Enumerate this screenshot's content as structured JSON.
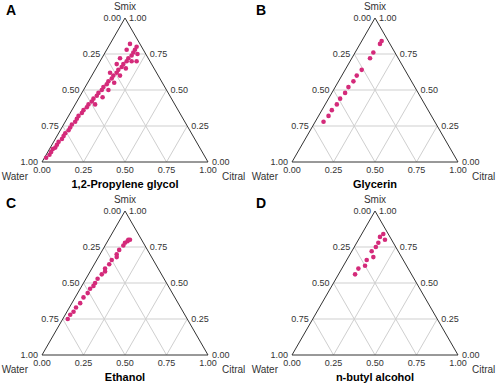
{
  "chart_data": [
    {
      "type": "ternary",
      "panel_label": "A",
      "title": "1,2-Propylene glycol",
      "components": [
        "Smix",
        "Water",
        "Citral"
      ],
      "lim": [
        0,
        1
      ],
      "ticks": [
        {
          "value": 0,
          "label": "0.00"
        },
        {
          "value": 0.25,
          "label": "0.25"
        },
        {
          "value": 0.5,
          "label": "0.50"
        },
        {
          "value": 0.75,
          "label": "0.75"
        },
        {
          "value": 1,
          "label": "1.00"
        }
      ],
      "grid": true,
      "color": "#d42a7a",
      "marker": "circle",
      "points": [
        [
          0.03,
          0.96,
          0.01
        ],
        [
          0.05,
          0.93,
          0.02
        ],
        [
          0.07,
          0.91,
          0.02
        ],
        [
          0.09,
          0.89,
          0.02
        ],
        [
          0.1,
          0.87,
          0.03
        ],
        [
          0.12,
          0.85,
          0.03
        ],
        [
          0.14,
          0.83,
          0.03
        ],
        [
          0.16,
          0.8,
          0.04
        ],
        [
          0.18,
          0.78,
          0.04
        ],
        [
          0.2,
          0.76,
          0.04
        ],
        [
          0.22,
          0.73,
          0.05
        ],
        [
          0.24,
          0.71,
          0.05
        ],
        [
          0.26,
          0.69,
          0.05
        ],
        [
          0.28,
          0.66,
          0.06
        ],
        [
          0.3,
          0.64,
          0.06
        ],
        [
          0.32,
          0.62,
          0.06
        ],
        [
          0.34,
          0.59,
          0.07
        ],
        [
          0.36,
          0.57,
          0.07
        ],
        [
          0.38,
          0.54,
          0.08
        ],
        [
          0.4,
          0.52,
          0.08
        ],
        [
          0.42,
          0.49,
          0.09
        ],
        [
          0.44,
          0.47,
          0.09
        ],
        [
          0.46,
          0.44,
          0.1
        ],
        [
          0.48,
          0.42,
          0.1
        ],
        [
          0.5,
          0.39,
          0.11
        ],
        [
          0.52,
          0.37,
          0.11
        ],
        [
          0.54,
          0.34,
          0.12
        ],
        [
          0.56,
          0.32,
          0.12
        ],
        [
          0.58,
          0.29,
          0.13
        ],
        [
          0.6,
          0.27,
          0.13
        ],
        [
          0.62,
          0.24,
          0.14
        ],
        [
          0.64,
          0.22,
          0.14
        ],
        [
          0.66,
          0.19,
          0.15
        ],
        [
          0.68,
          0.17,
          0.15
        ],
        [
          0.7,
          0.14,
          0.16
        ],
        [
          0.72,
          0.12,
          0.16
        ],
        [
          0.74,
          0.09,
          0.17
        ],
        [
          0.76,
          0.07,
          0.17
        ],
        [
          0.78,
          0.05,
          0.17
        ],
        [
          0.8,
          0.03,
          0.17
        ],
        [
          0.4,
          0.48,
          0.12
        ],
        [
          0.45,
          0.41,
          0.14
        ],
        [
          0.5,
          0.35,
          0.15
        ],
        [
          0.55,
          0.29,
          0.16
        ],
        [
          0.6,
          0.23,
          0.17
        ],
        [
          0.65,
          0.17,
          0.18
        ],
        [
          0.7,
          0.11,
          0.19
        ],
        [
          0.75,
          0.05,
          0.2
        ],
        [
          0.62,
          0.28,
          0.1
        ],
        [
          0.68,
          0.21,
          0.11
        ],
        [
          0.72,
          0.17,
          0.11
        ],
        [
          0.78,
          0.1,
          0.12
        ],
        [
          0.82,
          0.06,
          0.12
        ],
        [
          0.7,
          0.08,
          0.22
        ]
      ]
    },
    {
      "type": "ternary",
      "panel_label": "B",
      "title": "Glycerin",
      "components": [
        "Smix",
        "Water",
        "Citral"
      ],
      "lim": [
        0,
        1
      ],
      "ticks": [
        {
          "value": 0,
          "label": "0.00"
        },
        {
          "value": 0.25,
          "label": "0.25"
        },
        {
          "value": 0.5,
          "label": "0.50"
        },
        {
          "value": 0.75,
          "label": "0.75"
        },
        {
          "value": 1,
          "label": "1.00"
        }
      ],
      "grid": true,
      "color": "#d42a7a",
      "marker": "circle",
      "points": [
        [
          0.28,
          0.67,
          0.05
        ],
        [
          0.32,
          0.62,
          0.06
        ],
        [
          0.36,
          0.58,
          0.06
        ],
        [
          0.4,
          0.53,
          0.07
        ],
        [
          0.44,
          0.49,
          0.07
        ],
        [
          0.48,
          0.44,
          0.08
        ],
        [
          0.52,
          0.4,
          0.08
        ],
        [
          0.56,
          0.35,
          0.09
        ],
        [
          0.6,
          0.31,
          0.09
        ],
        [
          0.64,
          0.26,
          0.1
        ],
        [
          0.72,
          0.17,
          0.11
        ],
        [
          0.76,
          0.13,
          0.11
        ],
        [
          0.82,
          0.06,
          0.12
        ],
        [
          0.84,
          0.04,
          0.12
        ]
      ]
    },
    {
      "type": "ternary",
      "panel_label": "C",
      "title": "Ethanol",
      "components": [
        "Smix",
        "Water",
        "Citral"
      ],
      "lim": [
        0,
        1
      ],
      "ticks": [
        {
          "value": 0,
          "label": "0.00"
        },
        {
          "value": 0.25,
          "label": "0.25"
        },
        {
          "value": 0.5,
          "label": "0.50"
        },
        {
          "value": 0.75,
          "label": "0.75"
        },
        {
          "value": 1,
          "label": "1.00"
        }
      ],
      "grid": true,
      "color": "#d42a7a",
      "marker": "circle",
      "points": [
        [
          0.25,
          0.72,
          0.03
        ],
        [
          0.28,
          0.69,
          0.03
        ],
        [
          0.3,
          0.66,
          0.04
        ],
        [
          0.33,
          0.63,
          0.04
        ],
        [
          0.36,
          0.59,
          0.05
        ],
        [
          0.4,
          0.55,
          0.05
        ],
        [
          0.43,
          0.51,
          0.06
        ],
        [
          0.46,
          0.48,
          0.06
        ],
        [
          0.5,
          0.43,
          0.07
        ],
        [
          0.53,
          0.4,
          0.07
        ],
        [
          0.56,
          0.36,
          0.08
        ],
        [
          0.6,
          0.32,
          0.08
        ],
        [
          0.63,
          0.28,
          0.09
        ],
        [
          0.66,
          0.25,
          0.09
        ],
        [
          0.7,
          0.2,
          0.1
        ],
        [
          0.73,
          0.17,
          0.1
        ],
        [
          0.76,
          0.13,
          0.11
        ],
        [
          0.78,
          0.11,
          0.11
        ],
        [
          0.79,
          0.09,
          0.12
        ],
        [
          0.8,
          0.08,
          0.12
        ],
        [
          0.8,
          0.07,
          0.13
        ],
        [
          0.48,
          0.45,
          0.07
        ],
        [
          0.58,
          0.33,
          0.09
        ],
        [
          0.68,
          0.21,
          0.11
        ]
      ]
    },
    {
      "type": "ternary",
      "panel_label": "D",
      "title": "n-butyl alcohol",
      "components": [
        "Smix",
        "Water",
        "Citral"
      ],
      "lim": [
        0,
        1
      ],
      "ticks": [
        {
          "value": 0,
          "label": "0.00"
        },
        {
          "value": 0.25,
          "label": "0.25"
        },
        {
          "value": 0.5,
          "label": "0.50"
        },
        {
          "value": 0.75,
          "label": "0.75"
        },
        {
          "value": 1,
          "label": "1.00"
        }
      ],
      "grid": true,
      "color": "#d42a7a",
      "marker": "circle",
      "points": [
        [
          0.56,
          0.34,
          0.1
        ],
        [
          0.6,
          0.3,
          0.1
        ],
        [
          0.62,
          0.25,
          0.13
        ],
        [
          0.66,
          0.22,
          0.12
        ],
        [
          0.68,
          0.17,
          0.15
        ],
        [
          0.72,
          0.16,
          0.12
        ],
        [
          0.75,
          0.12,
          0.13
        ],
        [
          0.78,
          0.09,
          0.13
        ],
        [
          0.82,
          0.06,
          0.12
        ],
        [
          0.84,
          0.03,
          0.13
        ],
        [
          0.8,
          0.04,
          0.16
        ]
      ]
    }
  ]
}
